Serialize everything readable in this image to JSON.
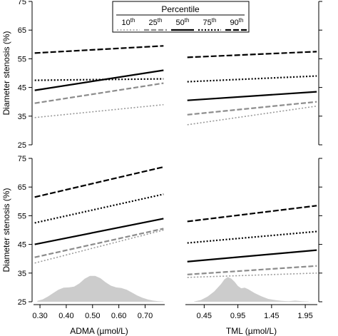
{
  "chart_data": {
    "type": "line",
    "legend": {
      "title": "Percentile",
      "placement": "top-center",
      "entries": [
        {
          "label": "10",
          "sup": "th",
          "color": "#9a9a9a",
          "dash": "2,2.5",
          "width": 1.6
        },
        {
          "label": "25",
          "sup": "th",
          "color": "#8c8c8c",
          "dash": "7,3",
          "width": 2.2
        },
        {
          "label": "50",
          "sup": "th",
          "color": "#000000",
          "dash": "",
          "width": 2.2
        },
        {
          "label": "75",
          "sup": "th",
          "color": "#000000",
          "dash": "2,2.5",
          "width": 2.2
        },
        {
          "label": "90",
          "sup": "th",
          "color": "#000000",
          "dash": "8,3",
          "width": 2.2
        }
      ]
    },
    "ylabel": "Diameter stenosis (%)",
    "ylim": [
      25,
      75
    ],
    "yticks": [
      "25",
      "35",
      "45",
      "55",
      "65",
      "75"
    ],
    "xaxes": [
      {
        "label": "ADMA  (µmol/L)",
        "xlim": [
          0.27,
          0.78
        ],
        "ticks": [
          {
            "value": 0.3,
            "label": "0.30"
          },
          {
            "value": 0.4,
            "label": "0.40"
          },
          {
            "value": 0.5,
            "label": "0.50"
          },
          {
            "value": 0.6,
            "label": "0.60"
          },
          {
            "value": 0.7,
            "label": "0.70"
          }
        ]
      },
      {
        "label": "TML  (µmol/L)",
        "xlim": [
          0.15,
          2.15
        ],
        "ticks": [
          {
            "value": 0.45,
            "label": "0.45"
          },
          {
            "value": 0.95,
            "label": "0.95"
          },
          {
            "value": 1.45,
            "label": "1.45"
          },
          {
            "value": 1.95,
            "label": "1.95"
          }
        ]
      }
    ],
    "panels": [
      {
        "row": 0,
        "col": 0,
        "series": [
          {
            "x": [
              0.28,
              0.77
            ],
            "y": [
              34.5,
              39.0
            ]
          },
          {
            "x": [
              0.28,
              0.77
            ],
            "y": [
              39.5,
              46.5
            ]
          },
          {
            "x": [
              0.28,
              0.77
            ],
            "y": [
              44.0,
              51.0
            ]
          },
          {
            "x": [
              0.28,
              0.77
            ],
            "y": [
              47.5,
              48.0
            ]
          },
          {
            "x": [
              0.28,
              0.77
            ],
            "y": [
              57.0,
              59.5
            ]
          }
        ]
      },
      {
        "row": 0,
        "col": 1,
        "series": [
          {
            "x": [
              0.2,
              2.12
            ],
            "y": [
              32.0,
              38.5
            ]
          },
          {
            "x": [
              0.2,
              2.12
            ],
            "y": [
              35.5,
              40.0
            ]
          },
          {
            "x": [
              0.2,
              2.12
            ],
            "y": [
              40.5,
              43.5
            ]
          },
          {
            "x": [
              0.2,
              2.12
            ],
            "y": [
              47.0,
              49.0
            ]
          },
          {
            "x": [
              0.2,
              2.12
            ],
            "y": [
              55.5,
              57.5
            ]
          }
        ]
      },
      {
        "row": 1,
        "col": 0,
        "density": {
          "x": [
            0.29,
            0.31,
            0.33,
            0.35,
            0.37,
            0.39,
            0.41,
            0.43,
            0.45,
            0.47,
            0.49,
            0.51,
            0.53,
            0.55,
            0.57,
            0.59,
            0.61,
            0.63,
            0.65,
            0.67,
            0.69,
            0.71,
            0.73,
            0.75,
            0.77
          ],
          "y": [
            25.3,
            25.8,
            26.8,
            28.0,
            29.2,
            29.9,
            30.0,
            30.3,
            31.4,
            33.0,
            34.0,
            34.0,
            33.2,
            31.8,
            30.6,
            30.0,
            29.8,
            29.2,
            28.2,
            27.2,
            26.4,
            25.8,
            25.4,
            25.2,
            25.1
          ]
        },
        "series": [
          {
            "x": [
              0.28,
              0.77
            ],
            "y": [
              38.5,
              50.0
            ]
          },
          {
            "x": [
              0.28,
              0.77
            ],
            "y": [
              40.5,
              50.5
            ]
          },
          {
            "x": [
              0.28,
              0.77
            ],
            "y": [
              45.0,
              54.0
            ]
          },
          {
            "x": [
              0.28,
              0.77
            ],
            "y": [
              52.5,
              62.5
            ]
          },
          {
            "x": [
              0.28,
              0.77
            ],
            "y": [
              61.5,
              72.0
            ]
          }
        ]
      },
      {
        "row": 1,
        "col": 1,
        "density": {
          "x": [
            0.3,
            0.4,
            0.5,
            0.6,
            0.7,
            0.75,
            0.8,
            0.85,
            0.9,
            0.95,
            1.0,
            1.05,
            1.1,
            1.2,
            1.3,
            1.4,
            1.5,
            1.6,
            1.7,
            1.8,
            1.9,
            2.0
          ],
          "y": [
            25.1,
            25.6,
            26.8,
            28.6,
            31.2,
            32.8,
            33.6,
            33.1,
            32.0,
            30.5,
            29.7,
            29.9,
            29.4,
            28.0,
            26.9,
            26.0,
            25.6,
            25.3,
            25.2,
            25.4,
            25.2,
            25.1
          ]
        },
        "series": [
          {
            "x": [
              0.2,
              2.12
            ],
            "y": [
              33.5,
              35.0
            ]
          },
          {
            "x": [
              0.2,
              2.12
            ],
            "y": [
              34.5,
              37.5
            ]
          },
          {
            "x": [
              0.2,
              2.12
            ],
            "y": [
              39.0,
              43.0
            ]
          },
          {
            "x": [
              0.2,
              2.12
            ],
            "y": [
              45.5,
              49.5
            ]
          },
          {
            "x": [
              0.2,
              2.12
            ],
            "y": [
              53.0,
              58.5
            ]
          }
        ]
      }
    ]
  }
}
